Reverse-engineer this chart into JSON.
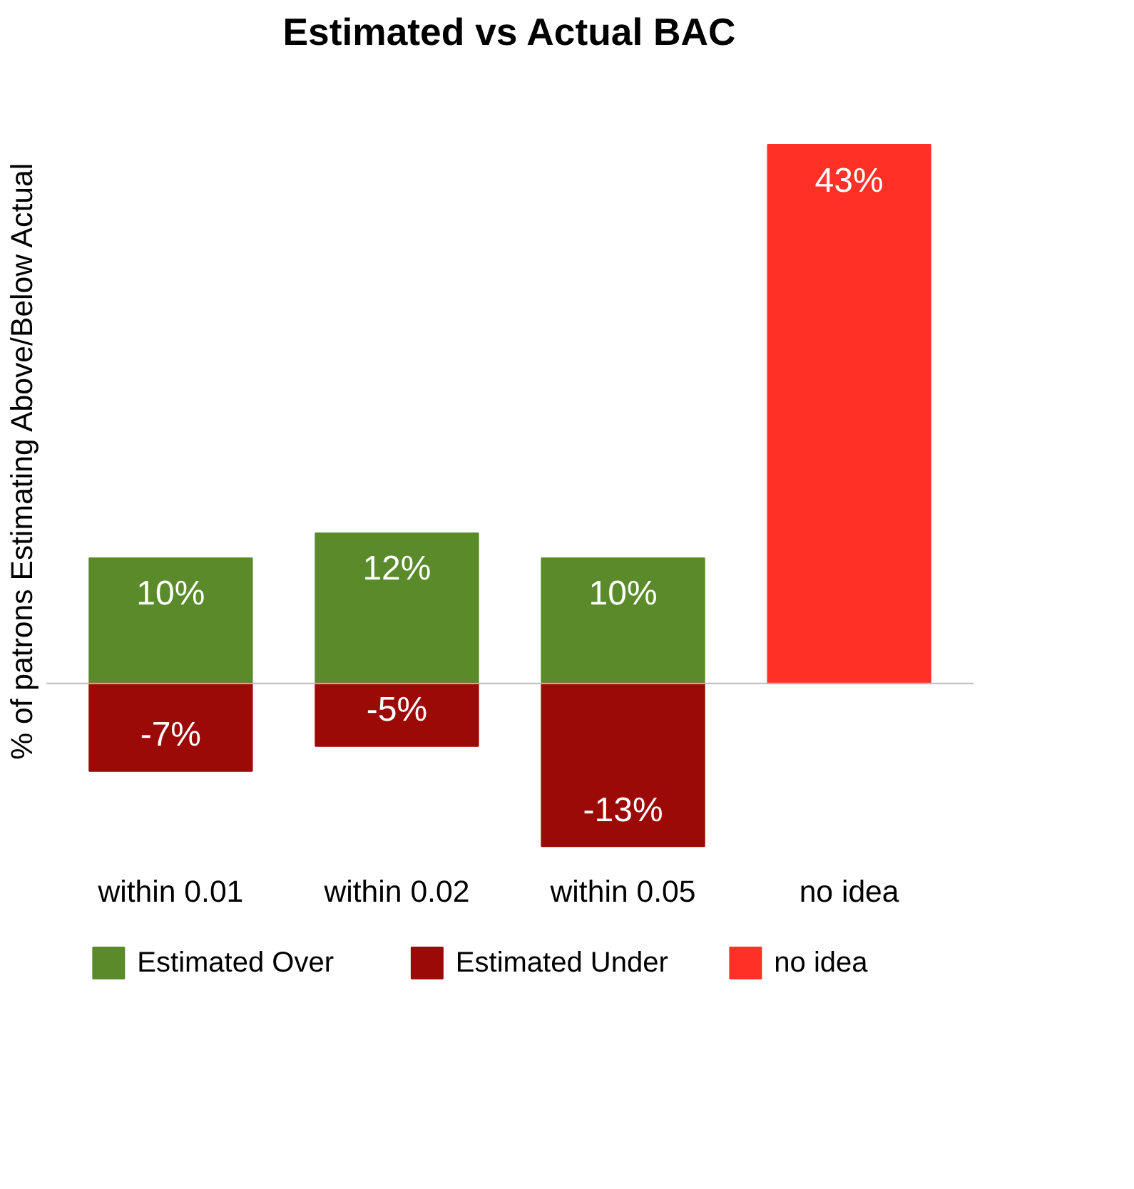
{
  "chart_data": {
    "type": "bar",
    "title": "Estimated vs Actual BAC",
    "ylabel": "% of patrons Estimating Above/Below Actual",
    "categories": [
      "within 0.01",
      "within 0.02",
      "within 0.05",
      "no idea"
    ],
    "series": [
      {
        "name": "Estimated Over",
        "color": "#5a8a2a",
        "values": [
          10,
          12,
          10,
          null
        ],
        "value_labels": [
          "10%",
          "12%",
          "10%",
          null
        ]
      },
      {
        "name": "Estimated Under",
        "color": "#9b0a06",
        "values": [
          -7,
          -5,
          -13,
          null
        ],
        "value_labels": [
          "-7%",
          "-5%",
          "-13%",
          null
        ]
      },
      {
        "name": "no idea",
        "color": "#ff3126",
        "values": [
          null,
          null,
          null,
          43
        ],
        "value_labels": [
          null,
          null,
          null,
          "43%"
        ]
      }
    ],
    "stacked": true,
    "data_labels": true,
    "legend": "bottom"
  }
}
